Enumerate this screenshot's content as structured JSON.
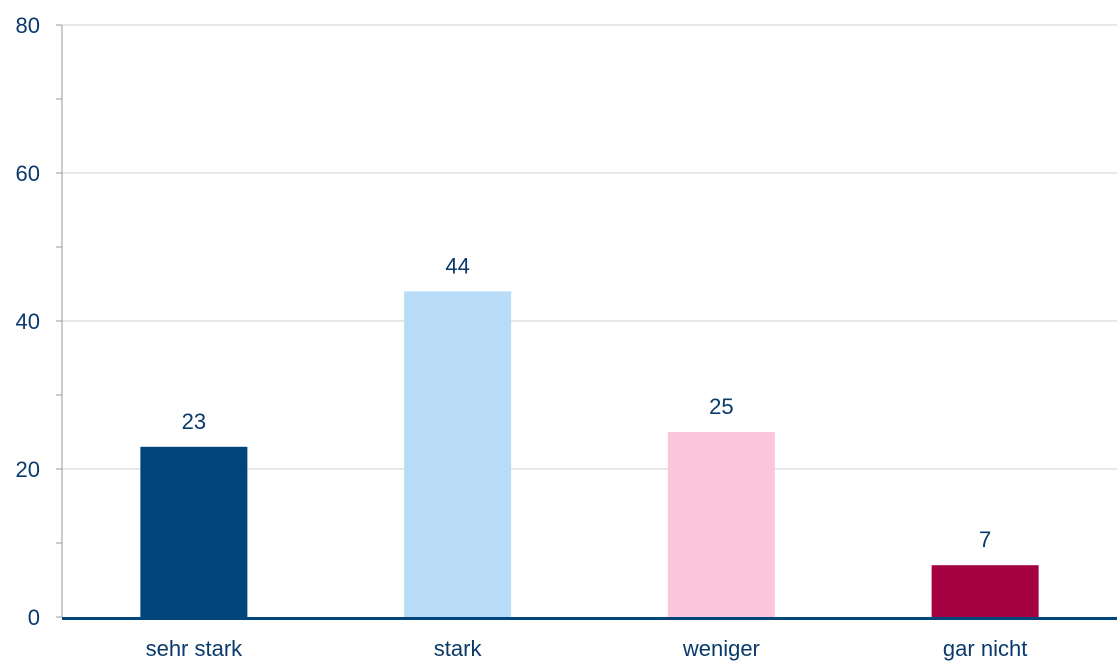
{
  "chart_data": {
    "type": "bar",
    "title": "",
    "xlabel": "",
    "ylabel": "",
    "categories": [
      "sehr stark",
      "stark",
      "weniger",
      "gar nicht"
    ],
    "values": [
      23,
      44,
      25,
      7
    ],
    "value_labels": [
      "23",
      "44",
      "25",
      "7"
    ],
    "ylim": [
      0,
      80
    ],
    "yticks": [
      0,
      20,
      40,
      60,
      80
    ],
    "ytick_labels": [
      "0",
      "20",
      "40",
      "60",
      "80"
    ],
    "minor_tick_step": 10,
    "grid": true,
    "legend": "none",
    "bar_colors": [
      "#00457c",
      "#b8dcf8",
      "#f9c6dc",
      "#a5003f"
    ],
    "text_color": "#0a3a6b",
    "axis_color": "#00457c",
    "grid_color": "#d0d0d0"
  }
}
